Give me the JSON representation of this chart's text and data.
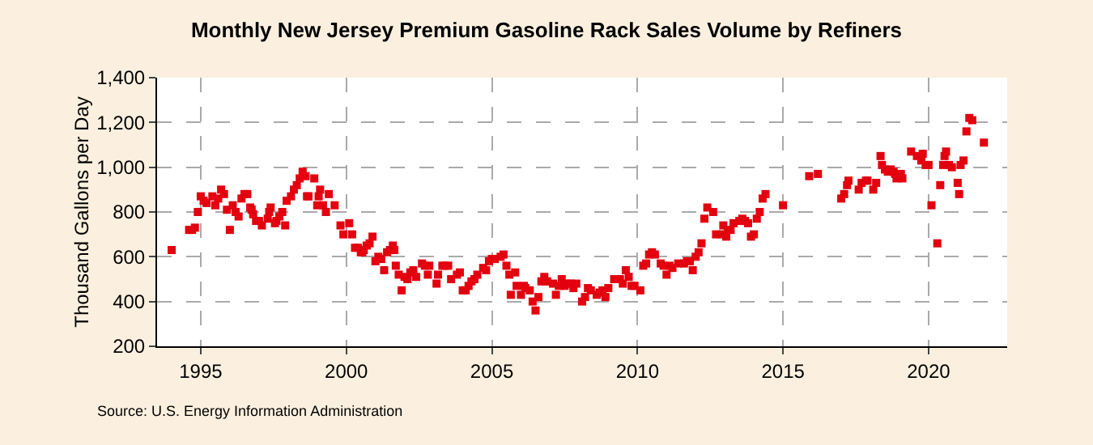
{
  "chart_data": {
    "type": "scatter",
    "title": "Monthly New Jersey Premium Gasoline Rack Sales Volume by Refiners",
    "ylabel": "Thousand Gallons per Day",
    "annotations": [
      "Source: U.S. Energy Information Administration"
    ],
    "marker": "square",
    "grid": true,
    "xlim": [
      1993.5,
      2022.7
    ],
    "xticks": [
      1995,
      2000,
      2005,
      2010,
      2015,
      2020
    ],
    "ylim": [
      200,
      1400
    ],
    "yticks": [
      {
        "value": 200,
        "label": "200"
      },
      {
        "value": 400,
        "label": "400"
      },
      {
        "value": 600,
        "label": "600"
      },
      {
        "value": 800,
        "label": "800"
      },
      {
        "value": 1000,
        "label": "1,000"
      },
      {
        "value": 1200,
        "label": "1,200"
      },
      {
        "value": 1400,
        "label": "1,400"
      }
    ],
    "series": [
      {
        "color": "#e3000f",
        "x": [
          1994.0,
          1994.6,
          1994.7,
          1994.8,
          1994.9,
          1995.0,
          1995.1,
          1995.2,
          1995.4,
          1995.5,
          1995.6,
          1995.7,
          1995.8,
          1995.9,
          1996.0,
          1996.1,
          1996.2,
          1996.3,
          1996.4,
          1996.5,
          1996.6,
          1996.7,
          1996.75,
          1996.8,
          1996.9,
          1997.0,
          1997.1,
          1997.3,
          1997.35,
          1997.4,
          1997.55,
          1997.6,
          1997.7,
          1997.8,
          1997.9,
          1997.95,
          1998.1,
          1998.2,
          1998.3,
          1998.4,
          1998.5,
          1998.6,
          1998.65,
          1998.7,
          1998.9,
          1999.0,
          1999.05,
          1999.1,
          1999.2,
          1999.3,
          1999.4,
          1999.6,
          1999.8,
          1999.9,
          2000.1,
          2000.2,
          2000.3,
          2000.4,
          2000.5,
          2000.55,
          2000.6,
          2000.7,
          2000.8,
          2000.9,
          2001.0,
          2001.1,
          2001.2,
          2001.3,
          2001.4,
          2001.5,
          2001.6,
          2001.65,
          2001.7,
          2001.8,
          2001.9,
          2002.0,
          2002.1,
          2002.2,
          2002.3,
          2002.4,
          2002.6,
          2002.7,
          2002.8,
          2002.85,
          2003.1,
          2003.15,
          2003.3,
          2003.4,
          2003.5,
          2003.6,
          2003.8,
          2003.9,
          2004.0,
          2004.1,
          2004.2,
          2004.3,
          2004.4,
          2004.5,
          2004.7,
          2004.8,
          2004.9,
          2005.0,
          2005.1,
          2005.3,
          2005.4,
          2005.5,
          2005.6,
          2005.65,
          2005.8,
          2005.85,
          2006.0,
          2006.1,
          2006.15,
          2006.3,
          2006.4,
          2006.5,
          2006.6,
          2006.7,
          2006.8,
          2006.85,
          2006.9,
          2007.1,
          2007.2,
          2007.3,
          2007.4,
          2007.5,
          2007.6,
          2007.7,
          2007.8,
          2007.9,
          2008.1,
          2008.2,
          2008.3,
          2008.4,
          2008.6,
          2008.7,
          2008.8,
          2008.9,
          2009.0,
          2009.2,
          2009.4,
          2009.5,
          2009.6,
          2009.7,
          2009.8,
          2009.9,
          2010.1,
          2010.2,
          2010.3,
          2010.4,
          2010.5,
          2010.6,
          2010.8,
          2010.9,
          2011.0,
          2011.1,
          2011.2,
          2011.4,
          2011.6,
          2011.7,
          2011.8,
          2011.9,
          2012.0,
          2012.1,
          2012.2,
          2012.3,
          2012.4,
          2012.6,
          2012.7,
          2012.9,
          2012.95,
          2013.05,
          2013.1,
          2013.2,
          2013.3,
          2013.5,
          2013.6,
          2013.7,
          2013.8,
          2013.9,
          2014.0,
          2014.1,
          2014.2,
          2014.3,
          2014.4,
          2015.0,
          2015.9,
          2016.2,
          2017.0,
          2017.1,
          2017.2,
          2017.25,
          2017.6,
          2017.7,
          2017.85,
          2017.9,
          2018.1,
          2018.2,
          2018.35,
          2018.4,
          2018.5,
          2018.6,
          2018.7,
          2018.8,
          2018.85,
          2018.9,
          2019.05,
          2019.1,
          2019.4,
          2019.6,
          2019.75,
          2019.8,
          2019.9,
          2020.0,
          2020.1,
          2020.3,
          2020.4,
          2020.5,
          2020.55,
          2020.6,
          2020.7,
          2020.8,
          2021.0,
          2021.05,
          2021.1,
          2021.2,
          2021.3,
          2021.4,
          2021.5,
          2021.9
        ],
        "values": [
          630,
          720,
          720,
          730,
          800,
          870,
          850,
          840,
          870,
          830,
          860,
          900,
          880,
          810,
          720,
          830,
          800,
          780,
          860,
          880,
          880,
          820,
          810,
          790,
          760,
          760,
          740,
          770,
          800,
          820,
          750,
          760,
          780,
          800,
          740,
          850,
          870,
          900,
          920,
          950,
          980,
          960,
          870,
          870,
          950,
          830,
          870,
          900,
          830,
          800,
          880,
          830,
          740,
          700,
          750,
          700,
          640,
          640,
          620,
          620,
          630,
          650,
          660,
          690,
          580,
          600,
          590,
          540,
          620,
          630,
          650,
          630,
          560,
          520,
          450,
          510,
          500,
          530,
          540,
          510,
          570,
          560,
          520,
          560,
          480,
          520,
          560,
          560,
          560,
          500,
          520,
          530,
          450,
          450,
          470,
          490,
          500,
          520,
          550,
          540,
          580,
          590,
          590,
          600,
          610,
          560,
          520,
          430,
          530,
          470,
          430,
          470,
          460,
          450,
          400,
          360,
          420,
          490,
          510,
          490,
          490,
          480,
          430,
          470,
          500,
          470,
          480,
          480,
          460,
          480,
          400,
          420,
          460,
          450,
          430,
          440,
          450,
          420,
          460,
          500,
          500,
          480,
          540,
          510,
          470,
          470,
          450,
          560,
          570,
          610,
          620,
          610,
          570,
          560,
          520,
          560,
          550,
          570,
          570,
          580,
          580,
          540,
          600,
          620,
          660,
          770,
          820,
          800,
          700,
          700,
          740,
          690,
          720,
          720,
          750,
          760,
          770,
          760,
          750,
          690,
          700,
          770,
          800,
          860,
          880,
          830,
          960,
          970,
          860,
          880,
          920,
          940,
          900,
          930,
          940,
          940,
          900,
          930,
          1050,
          1010,
          990,
          980,
          990,
          980,
          970,
          950,
          970,
          950,
          1070,
          1050,
          1030,
          1060,
          1010,
          1010,
          830,
          660,
          920,
          1010,
          1050,
          1070,
          1010,
          1000,
          930,
          880,
          1010,
          1030,
          1160,
          1220,
          1210,
          1110
        ]
      }
    ]
  }
}
